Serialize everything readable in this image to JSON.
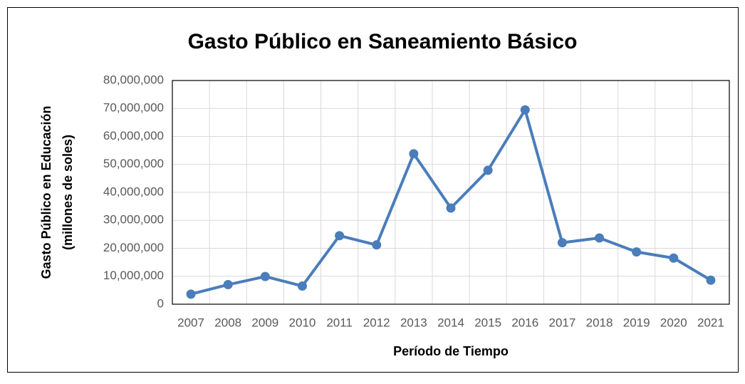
{
  "chart_data": {
    "type": "line",
    "title": "Gasto Público en Saneamiento Básico",
    "xlabel": "Período de Tiempo",
    "ylabel": [
      "Gasto Público en Educación",
      "(millones de soles)"
    ],
    "categories": [
      "2007",
      "2008",
      "2009",
      "2010",
      "2011",
      "2012",
      "2013",
      "2014",
      "2015",
      "2016",
      "2017",
      "2018",
      "2019",
      "2020",
      "2021"
    ],
    "series": [
      {
        "name": "Gasto Público",
        "color": "#4a7dba",
        "values": [
          3600000,
          7000000,
          9900000,
          6500000,
          24500000,
          21200000,
          53800000,
          34400000,
          47900000,
          69500000,
          22000000,
          23700000,
          18700000,
          16500000,
          8600000
        ]
      }
    ],
    "ylim": [
      0,
      80000000
    ],
    "yticks": [
      0,
      {
        "value": 10000000,
        "label": "10,000,000"
      },
      {
        "value": 20000000,
        "label": "20,000,000"
      },
      {
        "value": 30000000,
        "label": "30,000,000"
      },
      {
        "value": 40000000,
        "label": "40,000,000"
      },
      {
        "value": 50000000,
        "label": "50,000,000"
      },
      {
        "value": 60000000,
        "label": "60,000,000"
      },
      {
        "value": 70000000,
        "label": "70,000,000"
      },
      {
        "value": 80000000,
        "label": "80,000,000"
      }
    ],
    "grid": true
  }
}
